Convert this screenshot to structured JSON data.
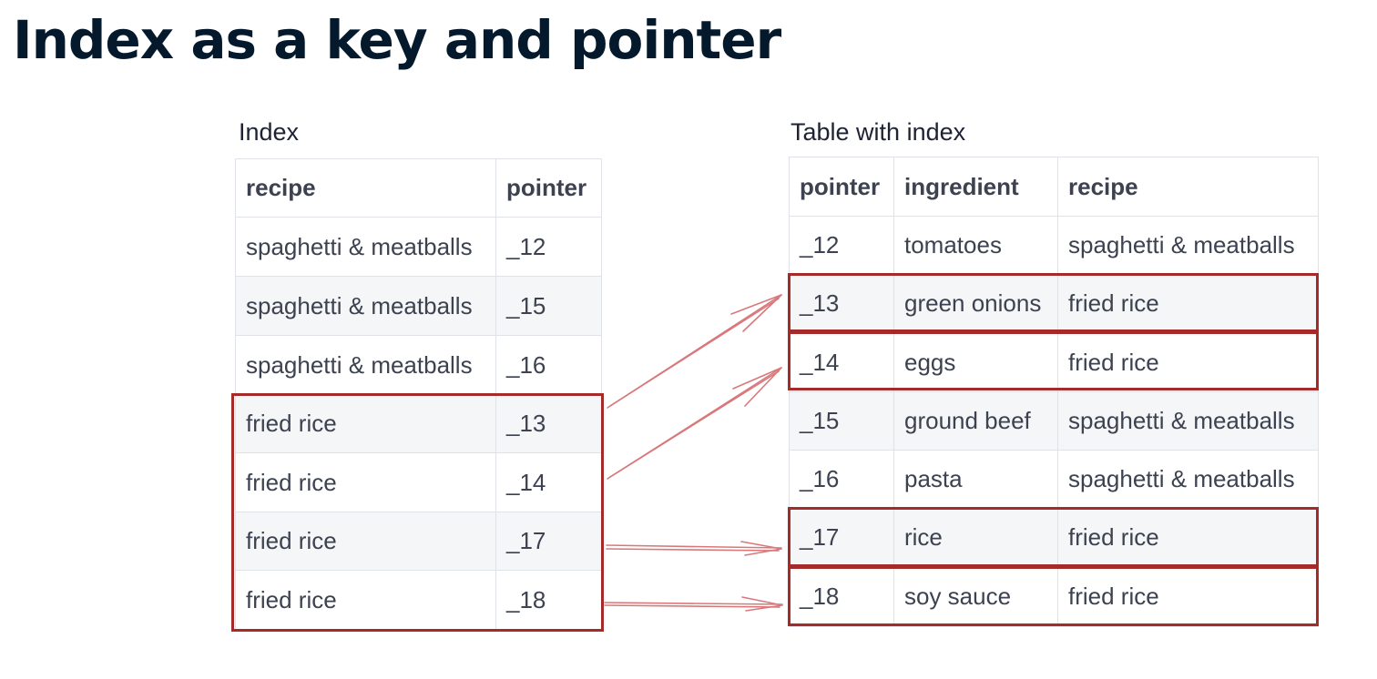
{
  "title": "Index as a key and pointer",
  "index_table": {
    "caption": "Index",
    "headers": [
      "recipe",
      "pointer"
    ],
    "rows": [
      [
        "spaghetti & meatballs",
        "_12"
      ],
      [
        "spaghetti & meatballs",
        "_15"
      ],
      [
        "spaghetti & meatballs",
        "_16"
      ],
      [
        "fried rice",
        "_13"
      ],
      [
        "fried rice",
        "_14"
      ],
      [
        "fried rice",
        "_17"
      ],
      [
        "fried rice",
        "_18"
      ]
    ]
  },
  "data_table": {
    "caption": "Table with index",
    "headers": [
      "pointer",
      "ingredient",
      "recipe"
    ],
    "rows": [
      [
        "_12",
        "tomatoes",
        "spaghetti & meatballs"
      ],
      [
        "_13",
        "green onions",
        "fried rice"
      ],
      [
        "_14",
        "eggs",
        "fried rice"
      ],
      [
        "_15",
        "ground beef",
        "spaghetti & meatballs"
      ],
      [
        "_16",
        "pasta",
        "spaghetti & meatballs"
      ],
      [
        "_17",
        "rice",
        "fried rice"
      ],
      [
        "_18",
        "soy sauce",
        "fried rice"
      ]
    ]
  },
  "colors": {
    "highlight": "#a52a2a",
    "arrow": "#d9787a",
    "title": "#05192d"
  }
}
